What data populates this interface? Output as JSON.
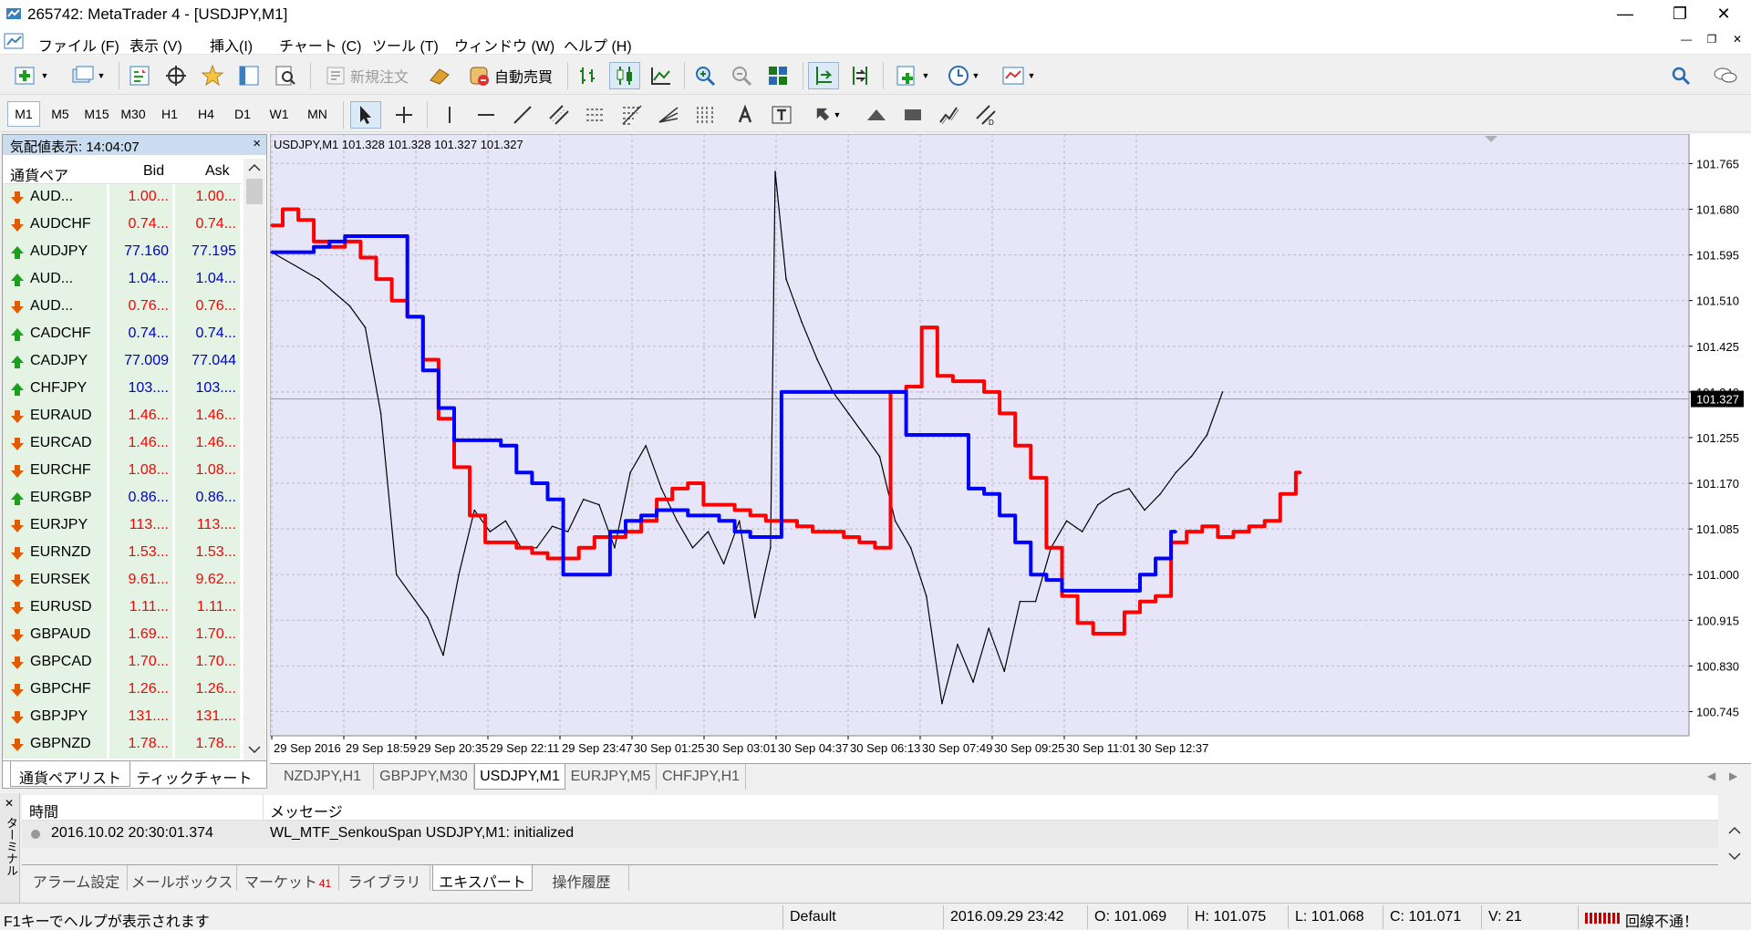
{
  "window": {
    "title": "265742: MetaTrader 4 - [USDJPY,M1]",
    "minimize": "—",
    "maximize": "❐",
    "close": "✕"
  },
  "menu": {
    "items": [
      "ファイル (F)",
      "表示 (V)",
      "挿入(I)",
      "チャート (C)",
      "ツール (T)",
      "ウィンドウ (W)",
      "ヘルプ (H)"
    ]
  },
  "toolbar1": {
    "new_order_label": "新規注文",
    "auto_trade_label": "自動売買"
  },
  "timeframes": [
    "M1",
    "M5",
    "M15",
    "M30",
    "H1",
    "H4",
    "D1",
    "W1",
    "MN"
  ],
  "active_timeframe": "M1",
  "market_watch": {
    "header": "気配値表示: 14:04:07",
    "close": "×",
    "col_symbol": "通貨ペア",
    "col_bid": "Bid",
    "col_ask": "Ask",
    "rows": [
      {
        "symbol": "AUD...",
        "bid": "1.00...",
        "ask": "1.00...",
        "dir": "down"
      },
      {
        "symbol": "AUDCHF",
        "bid": "0.74...",
        "ask": "0.74...",
        "dir": "down"
      },
      {
        "symbol": "AUDJPY",
        "bid": "77.160",
        "ask": "77.195",
        "dir": "up"
      },
      {
        "symbol": "AUD...",
        "bid": "1.04...",
        "ask": "1.04...",
        "dir": "up"
      },
      {
        "symbol": "AUD...",
        "bid": "0.76...",
        "ask": "0.76...",
        "dir": "down"
      },
      {
        "symbol": "CADCHF",
        "bid": "0.74...",
        "ask": "0.74...",
        "dir": "up"
      },
      {
        "symbol": "CADJPY",
        "bid": "77.009",
        "ask": "77.044",
        "dir": "up"
      },
      {
        "symbol": "CHFJPY",
        "bid": "103....",
        "ask": "103....",
        "dir": "up"
      },
      {
        "symbol": "EURAUD",
        "bid": "1.46...",
        "ask": "1.46...",
        "dir": "down"
      },
      {
        "symbol": "EURCAD",
        "bid": "1.46...",
        "ask": "1.46...",
        "dir": "down"
      },
      {
        "symbol": "EURCHF",
        "bid": "1.08...",
        "ask": "1.08...",
        "dir": "down"
      },
      {
        "symbol": "EURGBP",
        "bid": "0.86...",
        "ask": "0.86...",
        "dir": "up"
      },
      {
        "symbol": "EURJPY",
        "bid": "113....",
        "ask": "113....",
        "dir": "down"
      },
      {
        "symbol": "EURNZD",
        "bid": "1.53...",
        "ask": "1.53...",
        "dir": "down"
      },
      {
        "symbol": "EURSEK",
        "bid": "9.61...",
        "ask": "9.62...",
        "dir": "down"
      },
      {
        "symbol": "EURUSD",
        "bid": "1.11...",
        "ask": "1.11...",
        "dir": "down"
      },
      {
        "symbol": "GBPAUD",
        "bid": "1.69...",
        "ask": "1.70...",
        "dir": "down"
      },
      {
        "symbol": "GBPCAD",
        "bid": "1.70...",
        "ask": "1.70...",
        "dir": "down"
      },
      {
        "symbol": "GBPCHF",
        "bid": "1.26...",
        "ask": "1.26...",
        "dir": "down"
      },
      {
        "symbol": "GBPJPY",
        "bid": "131....",
        "ask": "131....",
        "dir": "down"
      },
      {
        "symbol": "GBPNZD",
        "bid": "1.78...",
        "ask": "1.78...",
        "dir": "down"
      }
    ],
    "tabs": [
      "通貨ペアリスト",
      "ティックチャート"
    ]
  },
  "chart": {
    "info": "USDJPY,M1  101.328 101.328 101.327 101.327",
    "current_price": "101.327",
    "colors": {
      "background": "#e6e6f8",
      "grid": "#b8b8c8",
      "red_line": "#ff0000",
      "blue_line": "#0000ff",
      "price": "#000000"
    }
  },
  "chart_data": {
    "type": "line",
    "title": "USDJPY,M1  101.328 101.328 101.327 101.327",
    "xlabel": "",
    "ylabel": "",
    "ylim": [
      100.7,
      101.82
    ],
    "y_ticks": [
      "101.765",
      "101.680",
      "101.595",
      "101.510",
      "101.425",
      "101.340",
      "101.255",
      "101.170",
      "101.085",
      "101.000",
      "100.915",
      "100.830",
      "100.745"
    ],
    "x_ticks": [
      "29 Sep 2016",
      "29 Sep 18:59",
      "29 Sep 20:35",
      "29 Sep 22:11",
      "29 Sep 23:47",
      "30 Sep 01:25",
      "30 Sep 03:01",
      "30 Sep 04:37",
      "30 Sep 06:13",
      "30 Sep 07:49",
      "30 Sep 09:25",
      "30 Sep 11:01",
      "30 Sep 12:37"
    ],
    "grid": true,
    "series": [
      {
        "name": "",
        "values": [
          [
            0,
            101.6
          ],
          [
            3,
            101.55
          ],
          [
            5,
            101.5
          ],
          [
            6,
            101.46
          ],
          [
            7,
            101.3
          ],
          [
            8,
            101.0
          ],
          [
            10,
            100.92
          ],
          [
            11,
            100.85
          ],
          [
            12,
            101.0
          ],
          [
            13,
            101.12
          ],
          [
            14,
            101.08
          ],
          [
            15,
            101.1
          ],
          [
            16,
            101.05
          ],
          [
            17,
            101.05
          ],
          [
            18,
            101.09
          ],
          [
            19,
            101.08
          ],
          [
            20,
            101.14
          ],
          [
            21,
            101.13
          ],
          [
            22,
            101.05
          ],
          [
            23,
            101.19
          ],
          [
            24,
            101.24
          ],
          [
            25,
            101.16
          ],
          [
            26,
            101.1
          ],
          [
            27,
            101.05
          ],
          [
            28,
            101.08
          ],
          [
            29,
            101.02
          ],
          [
            30,
            101.1
          ],
          [
            31,
            100.92
          ],
          [
            32,
            101.05
          ],
          [
            32.3,
            101.75
          ],
          [
            33,
            101.55
          ],
          [
            34,
            101.47
          ],
          [
            35,
            101.4
          ],
          [
            36,
            101.34
          ],
          [
            37,
            101.3
          ],
          [
            38,
            101.26
          ],
          [
            39,
            101.22
          ],
          [
            40,
            101.1
          ],
          [
            41,
            101.05
          ],
          [
            42,
            100.96
          ],
          [
            43,
            100.76
          ],
          [
            44,
            100.87
          ],
          [
            45,
            100.8
          ],
          [
            46,
            100.9
          ],
          [
            47,
            100.82
          ],
          [
            48,
            100.95
          ],
          [
            49,
            100.95
          ],
          [
            50,
            101.05
          ],
          [
            51,
            101.1
          ],
          [
            52,
            101.08
          ],
          [
            53,
            101.13
          ],
          [
            54,
            101.15
          ],
          [
            55,
            101.16
          ],
          [
            56,
            101.12
          ],
          [
            57,
            101.15
          ],
          [
            58,
            101.19
          ],
          [
            59,
            101.22
          ],
          [
            60,
            101.26
          ],
          [
            61,
            101.34
          ]
        ]
      },
      {
        "name": "",
        "values": [
          [
            0,
            101.65
          ],
          [
            1,
            101.68
          ],
          [
            2,
            101.66
          ],
          [
            3,
            101.62
          ],
          [
            4,
            101.61
          ],
          [
            5,
            101.62
          ],
          [
            6,
            101.59
          ],
          [
            7,
            101.55
          ],
          [
            8,
            101.51
          ],
          [
            9,
            101.48
          ],
          [
            10,
            101.4
          ],
          [
            11,
            101.29
          ],
          [
            12,
            101.2
          ],
          [
            13,
            101.11
          ],
          [
            14,
            101.06
          ],
          [
            15,
            101.06
          ],
          [
            16,
            101.05
          ],
          [
            17,
            101.04
          ],
          [
            18,
            101.03
          ],
          [
            19,
            101.03
          ],
          [
            20,
            101.05
          ],
          [
            21,
            101.07
          ],
          [
            22,
            101.07
          ],
          [
            23,
            101.08
          ],
          [
            24,
            101.1
          ],
          [
            25,
            101.14
          ],
          [
            26,
            101.16
          ],
          [
            27,
            101.17
          ],
          [
            28,
            101.13
          ],
          [
            29,
            101.13
          ],
          [
            30,
            101.12
          ],
          [
            31,
            101.11
          ],
          [
            32,
            101.1
          ],
          [
            33,
            101.1
          ],
          [
            34,
            101.09
          ],
          [
            35,
            101.08
          ],
          [
            36,
            101.08
          ],
          [
            37,
            101.07
          ],
          [
            38,
            101.06
          ],
          [
            39,
            101.05
          ],
          [
            40,
            101.34
          ],
          [
            41,
            101.35
          ],
          [
            42,
            101.46
          ],
          [
            43,
            101.37
          ],
          [
            44,
            101.36
          ],
          [
            45,
            101.36
          ],
          [
            46,
            101.34
          ],
          [
            47,
            101.3
          ],
          [
            48,
            101.24
          ],
          [
            49,
            101.18
          ],
          [
            50,
            101.05
          ],
          [
            51,
            100.96
          ],
          [
            52,
            100.91
          ],
          [
            53,
            100.89
          ],
          [
            54,
            100.89
          ],
          [
            55,
            100.93
          ],
          [
            56,
            100.95
          ],
          [
            57,
            100.96
          ],
          [
            58,
            101.06
          ],
          [
            59,
            101.08
          ],
          [
            60,
            101.09
          ],
          [
            61,
            101.07
          ],
          [
            62,
            101.08
          ],
          [
            63,
            101.09
          ],
          [
            64,
            101.1
          ],
          [
            65,
            101.15
          ],
          [
            66,
            101.19
          ]
        ]
      },
      {
        "name": "",
        "values": [
          [
            0,
            101.6
          ],
          [
            2,
            101.6
          ],
          [
            3,
            101.61
          ],
          [
            4,
            101.62
          ],
          [
            5,
            101.63
          ],
          [
            6,
            101.63
          ],
          [
            7,
            101.63
          ],
          [
            8,
            101.63
          ],
          [
            9,
            101.48
          ],
          [
            10,
            101.38
          ],
          [
            11,
            101.31
          ],
          [
            12,
            101.25
          ],
          [
            13,
            101.25
          ],
          [
            14,
            101.25
          ],
          [
            15,
            101.24
          ],
          [
            16,
            101.19
          ],
          [
            17,
            101.17
          ],
          [
            18,
            101.14
          ],
          [
            19,
            101.0
          ],
          [
            20,
            101.0
          ],
          [
            21,
            101.0
          ],
          [
            22,
            101.08
          ],
          [
            23,
            101.1
          ],
          [
            24,
            101.11
          ],
          [
            25,
            101.12
          ],
          [
            26,
            101.12
          ],
          [
            27,
            101.11
          ],
          [
            28,
            101.11
          ],
          [
            29,
            101.1
          ],
          [
            30,
            101.08
          ],
          [
            31,
            101.07
          ],
          [
            32,
            101.07
          ],
          [
            33,
            101.34
          ],
          [
            34,
            101.34
          ],
          [
            35,
            101.34
          ],
          [
            36,
            101.34
          ],
          [
            37,
            101.34
          ],
          [
            38,
            101.34
          ],
          [
            39,
            101.34
          ],
          [
            40,
            101.34
          ],
          [
            41,
            101.26
          ],
          [
            42,
            101.26
          ],
          [
            43,
            101.26
          ],
          [
            44,
            101.26
          ],
          [
            45,
            101.16
          ],
          [
            46,
            101.15
          ],
          [
            47,
            101.11
          ],
          [
            48,
            101.06
          ],
          [
            49,
            101.0
          ],
          [
            50,
            100.99
          ],
          [
            51,
            100.97
          ],
          [
            52,
            100.97
          ],
          [
            53,
            100.97
          ],
          [
            54,
            100.97
          ],
          [
            55,
            100.97
          ],
          [
            56,
            101.0
          ],
          [
            57,
            101.03
          ],
          [
            58,
            101.08
          ]
        ]
      }
    ]
  },
  "chart_tabs": [
    "NZDJPY,H1",
    "GBPJPY,M30",
    "USDJPY,M1",
    "EURJPY,M5",
    "CHFJPY,H1"
  ],
  "active_chart_tab": "USDJPY,M1",
  "terminal": {
    "side_label": "ターミナル",
    "col_time": "時間",
    "col_message": "メッセージ",
    "log": {
      "time": "2016.10.02 20:30:01.374",
      "message": "WL_MTF_SenkouSpan USDJPY,M1: initialized"
    },
    "tabs": [
      "アラーム設定",
      "メールボックス",
      "マーケット",
      "ライブラリ",
      "エキスパート",
      "操作履歴"
    ],
    "market_badge": "41",
    "active_tab": "エキスパート"
  },
  "status": {
    "help": "F1キーでヘルプが表示されます",
    "profile": "Default",
    "datetime": "2016.09.29 23:42",
    "open": "O: 101.069",
    "high": "H: 101.075",
    "low": "L: 101.068",
    "close": "C: 101.071",
    "volume": "V: 21",
    "connection": "回線不通！"
  }
}
